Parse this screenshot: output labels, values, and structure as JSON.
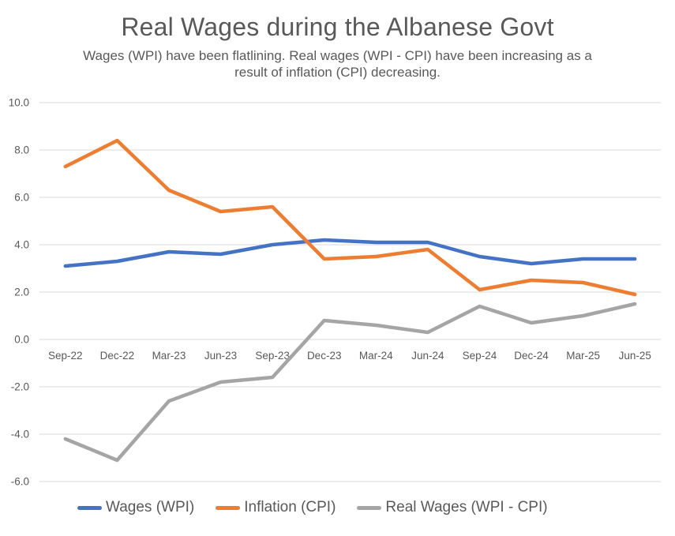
{
  "header": {
    "title": "Real Wages during the Albanese Govt",
    "subtitle_line1": "Wages (WPI) have been flatlining. Real wages (WPI - CPI) have been increasing as a",
    "subtitle_line2": "result of inflation (CPI) decreasing."
  },
  "chart_data": {
    "type": "line",
    "title": "Real Wages during the Albanese Govt",
    "subtitle": "Wages (WPI) have been flatlining. Real wages (WPI - CPI) have been increasing as a result of inflation (CPI) decreasing.",
    "categories": [
      "Sep-22",
      "Dec-22",
      "Mar-23",
      "Jun-23",
      "Sep-23",
      "Dec-23",
      "Mar-24",
      "Jun-24",
      "Sep-24",
      "Dec-24",
      "Mar-25",
      "Jun-25"
    ],
    "series": [
      {
        "name": "Wages (WPI)",
        "color": "#4472C4",
        "values": [
          3.1,
          3.3,
          3.7,
          3.6,
          4.0,
          4.2,
          4.1,
          4.1,
          3.5,
          3.2,
          3.4,
          3.4
        ]
      },
      {
        "name": "Inflation (CPI)",
        "color": "#ED7D31",
        "values": [
          7.3,
          8.4,
          6.3,
          5.4,
          5.6,
          3.4,
          3.5,
          3.8,
          2.1,
          2.5,
          2.4,
          1.9
        ]
      },
      {
        "name": "Real Wages (WPI - CPI)",
        "color": "#A5A5A5",
        "values": [
          -4.2,
          -5.1,
          -2.6,
          -1.8,
          -1.6,
          0.8,
          0.6,
          0.3,
          1.4,
          0.7,
          1.0,
          1.5
        ]
      }
    ],
    "y_axis": {
      "min": -6,
      "max": 10,
      "step": 2,
      "tick_labels": [
        "10.0",
        "8.0",
        "6.0",
        "4.0",
        "2.0",
        "0.0",
        "-2.0",
        "-4.0",
        "-6.0"
      ]
    },
    "xlabel": "",
    "ylabel": "",
    "grid": true,
    "legend_position": "bottom",
    "styles": {
      "gridline_color": "#D9D9D9",
      "text_color": "#595959",
      "background": "#FFFFFF"
    }
  }
}
